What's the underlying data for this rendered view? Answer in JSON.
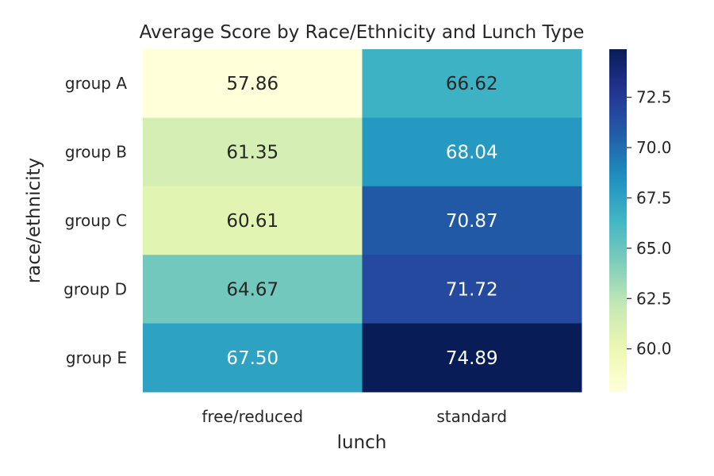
{
  "chart_data": {
    "type": "heatmap",
    "title": "Average Score by Race/Ethnicity and Lunch Type",
    "xlabel": "lunch",
    "ylabel": "race/ethnicity",
    "columns": [
      "free/reduced",
      "standard"
    ],
    "rows": [
      "group A",
      "group B",
      "group C",
      "group D",
      "group E"
    ],
    "values": [
      [
        57.86,
        66.62
      ],
      [
        61.35,
        68.04
      ],
      [
        60.61,
        70.87
      ],
      [
        64.67,
        71.72
      ],
      [
        67.5,
        74.89
      ]
    ],
    "value_labels": [
      [
        "57.86",
        "66.62"
      ],
      [
        "61.35",
        "68.04"
      ],
      [
        "60.61",
        "70.87"
      ],
      [
        "64.67",
        "71.72"
      ],
      [
        "67.50",
        "74.89"
      ]
    ],
    "colormap": "YlGnBu",
    "color_range": [
      57.86,
      74.89
    ],
    "colorbar_ticks": [
      "60.0",
      "62.5",
      "65.0",
      "67.5",
      "70.0",
      "72.5"
    ],
    "colorbar_tick_values": [
      60.0,
      62.5,
      65.0,
      67.5,
      70.0,
      72.5
    ],
    "colors": {
      "text_dark": "#262626",
      "text_light": "#ffffff"
    }
  }
}
